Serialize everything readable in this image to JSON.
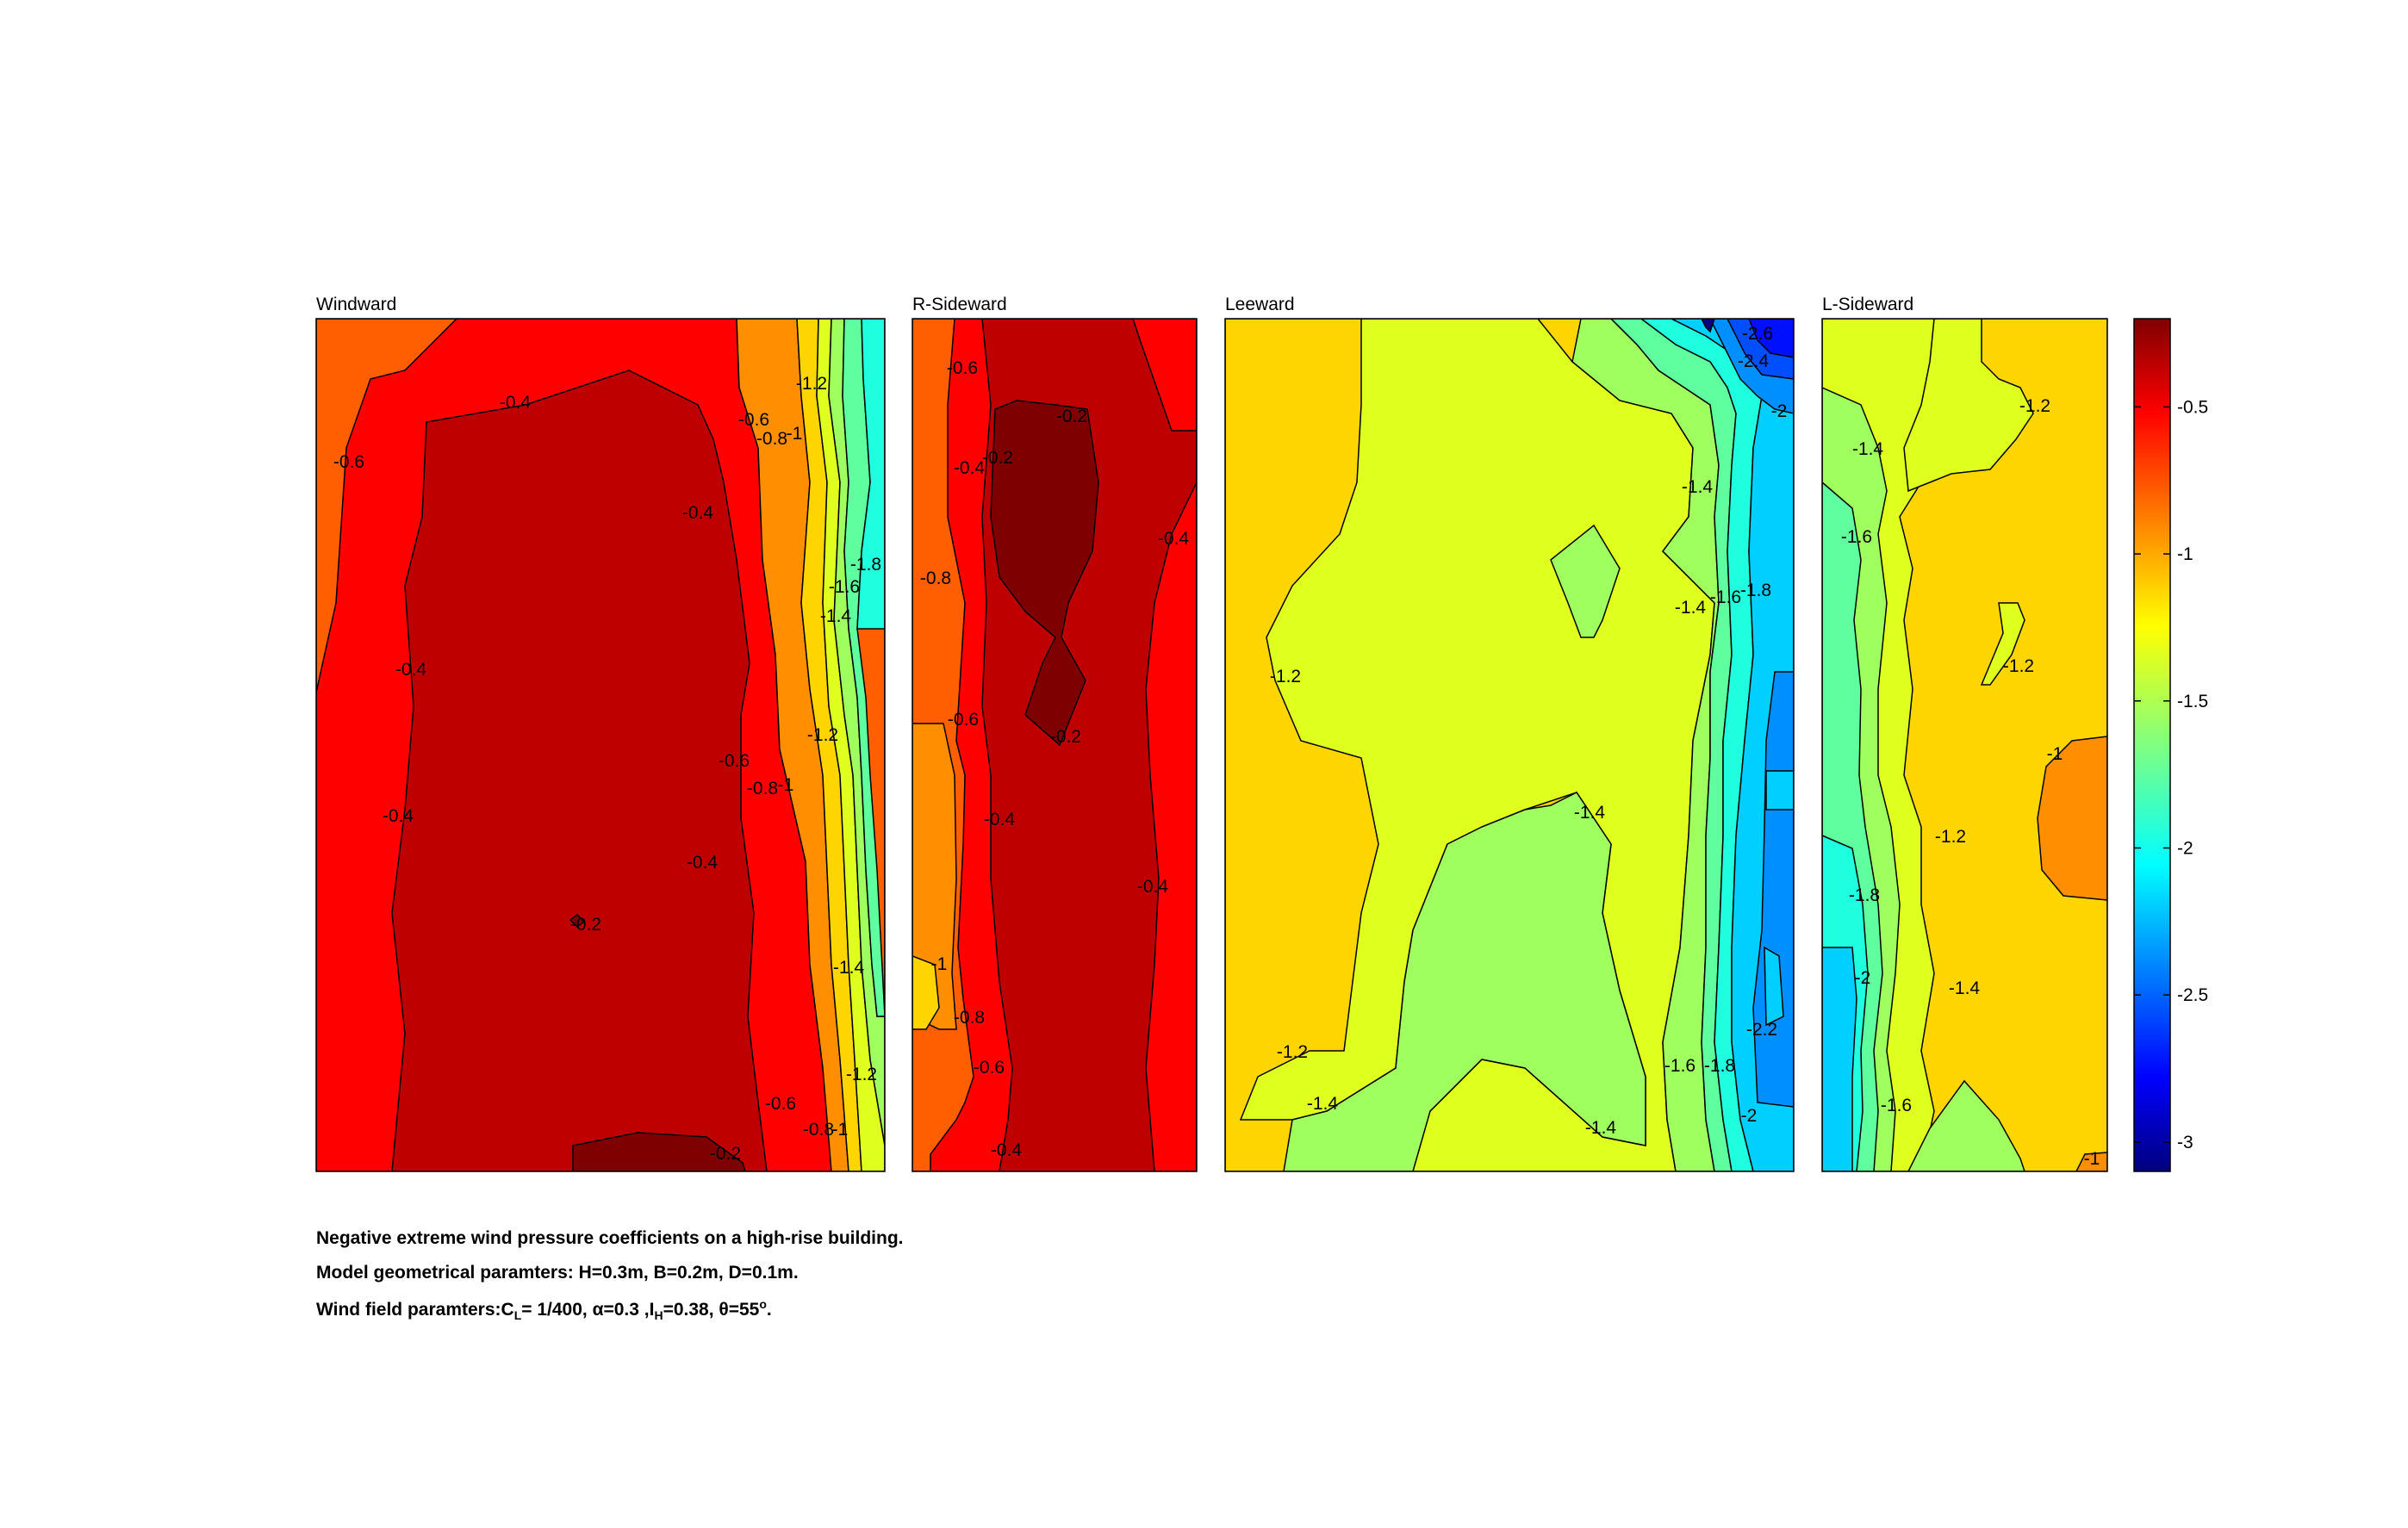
{
  "chart_data": {
    "type": "contour",
    "subplots": [
      {
        "title": "Windward",
        "contour_labels": [
          {
            "value": "-0.4",
            "at": [
              0.35,
              0.1
            ]
          },
          {
            "value": "-0.6",
            "at": [
              0.06,
              0.17
            ]
          },
          {
            "value": "-0.6",
            "at": [
              0.77,
              0.12
            ]
          },
          {
            "value": "-0.8",
            "at": [
              0.81,
              0.14
            ]
          },
          {
            "value": "-1",
            "at": [
              0.84,
              0.14
            ]
          },
          {
            "value": "-1.2",
            "at": [
              0.86,
              0.08
            ]
          },
          {
            "value": "-0.4",
            "at": [
              0.67,
              0.23
            ]
          },
          {
            "value": "-1.8",
            "at": [
              0.96,
              0.29
            ]
          },
          {
            "value": "-1.6",
            "at": [
              0.92,
              0.32
            ]
          },
          {
            "value": "-1.4",
            "at": [
              0.91,
              0.35
            ]
          },
          {
            "value": "-0.4",
            "at": [
              0.17,
              0.41
            ]
          },
          {
            "value": "-1.2",
            "at": [
              0.89,
              0.49
            ]
          },
          {
            "value": "-0.6",
            "at": [
              0.73,
              0.52
            ]
          },
          {
            "value": "-0.8",
            "at": [
              0.78,
              0.55
            ]
          },
          {
            "value": "-1",
            "at": [
              0.83,
              0.55
            ]
          },
          {
            "value": "-0.4",
            "at": [
              0.15,
              0.58
            ]
          },
          {
            "value": "-0.4",
            "at": [
              0.68,
              0.64
            ]
          },
          {
            "value": "-0.2",
            "at": [
              0.47,
              0.71
            ]
          },
          {
            "value": "-1.4",
            "at": [
              0.93,
              0.76
            ]
          },
          {
            "value": "-1.2",
            "at": [
              0.96,
              0.88
            ]
          },
          {
            "value": "-0.6",
            "at": [
              0.81,
              0.92
            ]
          },
          {
            "value": "-0.8",
            "at": [
              0.88,
              0.95
            ]
          },
          {
            "value": "-1",
            "at": [
              0.92,
              0.95
            ]
          },
          {
            "value": "-0.2",
            "at": [
              0.72,
              0.98
            ]
          }
        ]
      },
      {
        "title": "R-Sideward",
        "contour_labels": [
          {
            "value": "-0.6",
            "at": [
              0.17,
              0.06
            ]
          },
          {
            "value": "-0.2",
            "at": [
              0.56,
              0.11
            ]
          },
          {
            "value": "-0.4",
            "at": [
              0.2,
              0.17
            ]
          },
          {
            "value": "-0.2",
            "at": [
              0.3,
              0.16
            ]
          },
          {
            "value": "-0.4",
            "at": [
              0.92,
              0.26
            ]
          },
          {
            "value": "-0.8",
            "at": [
              0.08,
              0.3
            ]
          },
          {
            "value": "-0.6",
            "at": [
              0.18,
              0.47
            ]
          },
          {
            "value": "-0.2",
            "at": [
              0.54,
              0.49
            ]
          },
          {
            "value": "-0.4",
            "at": [
              0.31,
              0.58
            ]
          },
          {
            "value": "-0.4",
            "at": [
              0.84,
              0.67
            ]
          },
          {
            "value": "-1",
            "at": [
              0.09,
              0.76
            ]
          },
          {
            "value": "-0.8",
            "at": [
              0.2,
              0.82
            ]
          },
          {
            "value": "-0.6",
            "at": [
              0.27,
              0.88
            ]
          },
          {
            "value": "-0.4",
            "at": [
              0.33,
              0.98
            ]
          }
        ]
      },
      {
        "title": "Leeward",
        "contour_labels": [
          {
            "value": "-2.6",
            "at": [
              0.93,
              0.02
            ]
          },
          {
            "value": "-2.4",
            "at": [
              0.93,
              0.05
            ]
          },
          {
            "value": "-2",
            "at": [
              0.97,
              0.11
            ]
          },
          {
            "value": "-1.4",
            "at": [
              0.83,
              0.2
            ]
          },
          {
            "value": "-1.4",
            "at": [
              0.82,
              0.34
            ]
          },
          {
            "value": "-1.6",
            "at": [
              0.88,
              0.33
            ]
          },
          {
            "value": "-1.8",
            "at": [
              0.93,
              0.32
            ]
          },
          {
            "value": "-1.2",
            "at": [
              0.1,
              0.42
            ]
          },
          {
            "value": "-1.4",
            "at": [
              0.64,
              0.58
            ]
          },
          {
            "value": "-2.2",
            "at": [
              0.94,
              0.84
            ]
          },
          {
            "value": "-1.6",
            "at": [
              0.8,
              0.88
            ]
          },
          {
            "value": "-1.8",
            "at": [
              0.87,
              0.88
            ]
          },
          {
            "value": "-1.2",
            "at": [
              0.12,
              0.86
            ]
          },
          {
            "value": "-1.4",
            "at": [
              0.17,
              0.92
            ]
          },
          {
            "value": "-2",
            "at": [
              0.92,
              0.93
            ]
          },
          {
            "value": "-1.4",
            "at": [
              0.66,
              0.95
            ]
          }
        ]
      },
      {
        "title": "L-Sideward",
        "contour_labels": [
          {
            "value": "-1.2",
            "at": [
              0.7,
              0.1
            ]
          },
          {
            "value": "-1.4",
            "at": [
              0.17,
              0.15
            ]
          },
          {
            "value": "-1.6",
            "at": [
              0.13,
              0.25
            ]
          },
          {
            "value": "-1.2",
            "at": [
              0.68,
              0.41
            ]
          },
          {
            "value": "-1",
            "at": [
              0.82,
              0.51
            ]
          },
          {
            "value": "-1.2",
            "at": [
              0.45,
              0.61
            ]
          },
          {
            "value": "-1.8",
            "at": [
              0.14,
              0.67
            ]
          },
          {
            "value": "-2",
            "at": [
              0.14,
              0.77
            ]
          },
          {
            "value": "-1.4",
            "at": [
              0.5,
              0.78
            ]
          },
          {
            "value": "-1.6",
            "at": [
              0.26,
              0.92
            ]
          },
          {
            "value": "-1",
            "at": [
              0.93,
              0.98
            ]
          }
        ]
      }
    ],
    "colorbar": {
      "ticks": [
        "-0.5",
        "-1",
        "-1.5",
        "-2",
        "-2.5",
        "-3"
      ],
      "range": [
        -3.1,
        -0.2
      ],
      "colormap": "jet"
    },
    "colors": {
      "c02": "#7f0000",
      "c04": "#bf0000",
      "c06": "#ff0000",
      "c08": "#ff5f00",
      "c10": "#ff8f00",
      "c12": "#ffd500",
      "c14": "#dfff1f",
      "c16": "#9fff5f",
      "c18": "#5fff9f",
      "c20": "#1fffdf",
      "c22": "#00cfff",
      "c24": "#008fff",
      "c26": "#004fff",
      "c28": "#0010ff",
      "c30": "#00007f"
    }
  },
  "caption": {
    "line1": "Negative extreme wind pressure coefficients on a high-rise building.",
    "line2": "Model geometrical paramters: H=0.3m, B=0.2m, D=0.1m.",
    "line3_prefix": "Wind field paramters:C",
    "line3_sub1": "L",
    "line3_mid1": "= 1/400, α=0.3 ,I",
    "line3_sub2": "H",
    "line3_mid2": "=0.38, θ=55",
    "line3_sup": "o",
    "line3_end": "."
  }
}
